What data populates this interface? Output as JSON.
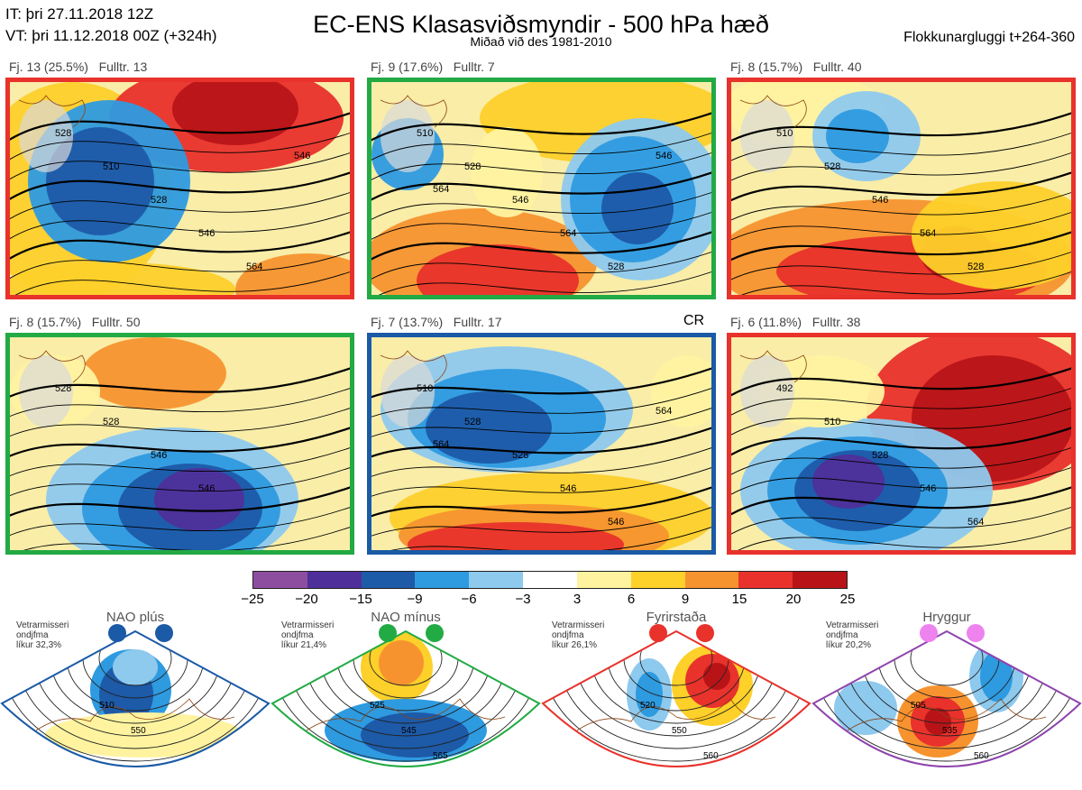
{
  "header": {
    "init_time": "IT: þri 27.11.2018 12Z",
    "valid_time": "VT: þri 11.12.2018 00Z  (+324h)",
    "title": "EC-ENS Klasasviðsmyndir - 500 hPa hæð",
    "subtitle": "Miðað við des 1981-2010",
    "window": "Flokkunargluggi t+264-360"
  },
  "panels": [
    {
      "label": "Fj. 13 (25.5%)   Fulltr. 13",
      "frame_color": "#e8322b",
      "regime": "Fyrirstaða",
      "contours": [
        "528",
        "510",
        "528",
        "546",
        "564",
        "546"
      ],
      "extra": ""
    },
    {
      "label": "Fj. 9 (17.6%)   Fulltr. 7",
      "frame_color": "#22aa44",
      "regime": "NAO mínus",
      "contours": [
        "510",
        "528",
        "546",
        "564",
        "528",
        "546",
        "564"
      ],
      "extra": ""
    },
    {
      "label": "Fj. 8 (15.7%)   Fulltr. 40",
      "frame_color": "#e8322b",
      "regime": "Fyrirstaða",
      "contours": [
        "510",
        "528",
        "546",
        "564",
        "528"
      ],
      "extra": ""
    },
    {
      "label": "Fj. 8 (15.7%)   Fulltr. 50",
      "frame_color": "#22aa44",
      "regime": "NAO mínus",
      "contours": [
        "528",
        "528",
        "546",
        "546"
      ],
      "extra": ""
    },
    {
      "label": "Fj. 7 (13.7%)   Fulltr. 17",
      "frame_color": "#1a5aa6",
      "regime": "NAO plús",
      "contours": [
        "510",
        "528",
        "528",
        "546",
        "546",
        "564",
        "564"
      ],
      "extra": "CR"
    },
    {
      "label": "Fj. 6 (11.8%)   Fulltr. 38",
      "frame_color": "#e8322b",
      "regime": "Fyrirstaða",
      "contours": [
        "492",
        "510",
        "528",
        "546",
        "564"
      ],
      "extra": ""
    }
  ],
  "colorbar": {
    "colors": [
      "#8e4ea0",
      "#4f2f9a",
      "#1d5aa8",
      "#2e9ae0",
      "#8ec9ee",
      "#ffffff",
      "#fff3a0",
      "#fdd02a",
      "#f7932f",
      "#e8322b",
      "#b81418"
    ],
    "ticks": [
      "−25",
      "−20",
      "−15",
      "−9",
      "−6",
      "−3",
      "3",
      "6",
      "9",
      "15",
      "20",
      "25"
    ]
  },
  "regimes": [
    {
      "name": "NAO plús",
      "note": "Vetrarmisseri\nondjfma\nlíkur 32,3%",
      "color": "#1a5aa6",
      "labels": [
        "510",
        "550"
      ]
    },
    {
      "name": "NAO mínus",
      "note": "Vetrarmisseri\nondjfma\nlíkur 21,4%",
      "color": "#22aa44",
      "labels": [
        "525",
        "545",
        "565"
      ]
    },
    {
      "name": "Fyrirstaða",
      "note": "Vetrarmisseri\nondjfma\nlíkur 26,1%",
      "color": "#e8322b",
      "labels": [
        "520",
        "550",
        "560"
      ]
    },
    {
      "name": "Hryggur",
      "note": "Vetrarmisseri\nondjfma\nlíkur 20,2%",
      "color": "#8e44ad",
      "labels": [
        "505",
        "535",
        "560"
      ]
    }
  ],
  "regime_dot_colors": [
    "#1a5aa6",
    "#22aa44",
    "#e8322b",
    "#ee82ee"
  ]
}
